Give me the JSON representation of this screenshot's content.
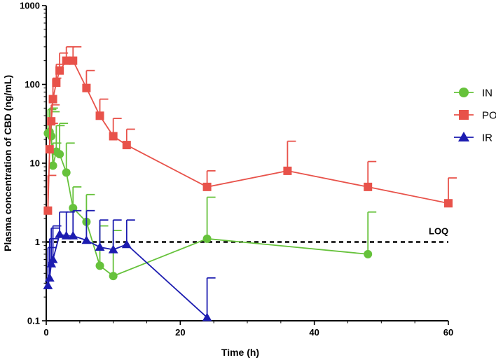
{
  "chart_data": {
    "type": "line",
    "xlabel": "Time (h)",
    "ylabel": "Plasma concentration of CBD (ng/mL)",
    "y_scale": "log",
    "xlim": [
      0,
      60
    ],
    "ylim": [
      0.1,
      1000
    ],
    "x_ticks": [
      0,
      20,
      40,
      60
    ],
    "y_ticks": [
      0.1,
      1,
      10,
      100,
      1000
    ],
    "x_tick_labels": [
      "0",
      "20",
      "40",
      "60"
    ],
    "y_tick_labels": [
      "0.1",
      "1",
      "10",
      "100",
      "1000"
    ],
    "legend_position": "right",
    "loq": {
      "label": "LOQ",
      "value": 1.0
    },
    "series": [
      {
        "name": "IN",
        "color": "#66c23b",
        "marker": "circle",
        "x": [
          0.25,
          0.5,
          0.75,
          1,
          1.5,
          2,
          3,
          4,
          6,
          8,
          10,
          24,
          48
        ],
        "y": [
          24,
          25,
          22,
          9.3,
          14,
          13,
          7.6,
          2.7,
          1.8,
          0.5,
          0.37,
          1.1,
          0.7
        ],
        "err_upper": [
          48,
          50,
          45,
          18,
          30,
          32,
          18,
          5,
          4,
          1.6,
          1.4,
          3.7,
          2.4
        ]
      },
      {
        "name": "PO",
        "color": "#e8524a",
        "marker": "square",
        "x": [
          0.25,
          0.5,
          0.75,
          1,
          1.5,
          2,
          3,
          4,
          6,
          8,
          10,
          12,
          24,
          36,
          48,
          60
        ],
        "y": [
          2.5,
          15,
          34,
          65,
          105,
          150,
          200,
          200,
          90,
          40,
          22,
          17,
          5,
          8,
          5,
          3.1
        ],
        "err_upper": [
          7,
          32,
          55,
          120,
          180,
          250,
          300,
          300,
          150,
          65,
          37,
          27,
          8,
          19,
          10.5,
          6.5
        ]
      },
      {
        "name": "IR",
        "color": "#1c1cb0",
        "marker": "triangle",
        "x": [
          0.25,
          0.5,
          0.75,
          1,
          2,
          3,
          4,
          6,
          8,
          10,
          12,
          24
        ],
        "y": [
          0.28,
          0.35,
          0.53,
          0.6,
          1.25,
          1.2,
          1.2,
          1.05,
          0.86,
          0.8,
          0.93,
          0.11
        ],
        "err_upper": [
          0.85,
          1.1,
          1.5,
          1.6,
          2.4,
          2.4,
          2.5,
          2.5,
          1.9,
          1.9,
          1.9,
          0.35
        ]
      }
    ]
  }
}
